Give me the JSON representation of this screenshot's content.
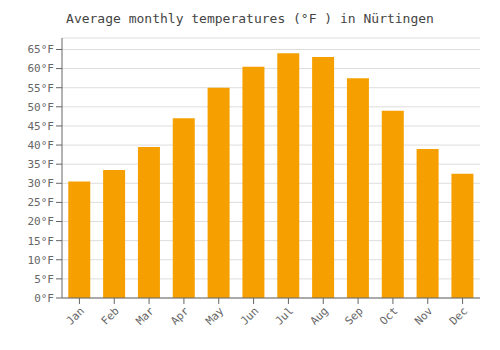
{
  "chart_data": {
    "type": "bar",
    "title": "Average monthly temperatures (°F ) in Nürtingen",
    "categories": [
      "Jan",
      "Feb",
      "Mar",
      "Apr",
      "May",
      "Jun",
      "Jul",
      "Aug",
      "Sep",
      "Oct",
      "Nov",
      "Dec"
    ],
    "values": [
      30.5,
      33.5,
      39.5,
      47.0,
      55.0,
      60.5,
      64.0,
      63.0,
      57.5,
      49.0,
      39.0,
      32.5
    ],
    "color": "#F5A000",
    "ylim": [
      0,
      68
    ],
    "yticks": [
      {
        "value": 0,
        "label": "0°F"
      },
      {
        "value": 5,
        "label": "5°F"
      },
      {
        "value": 10,
        "label": "10°F"
      },
      {
        "value": 15,
        "label": "15°F"
      },
      {
        "value": 20,
        "label": "20°F"
      },
      {
        "value": 25,
        "label": "25°F"
      },
      {
        "value": 30,
        "label": "30°F"
      },
      {
        "value": 35,
        "label": "35°F"
      },
      {
        "value": 40,
        "label": "40°F"
      },
      {
        "value": 45,
        "label": "45°F"
      },
      {
        "value": 50,
        "label": "50°F"
      },
      {
        "value": 55,
        "label": "55°F"
      },
      {
        "value": 60,
        "label": "60°F"
      },
      {
        "value": 65,
        "label": "65°F"
      }
    ],
    "grid": true
  }
}
